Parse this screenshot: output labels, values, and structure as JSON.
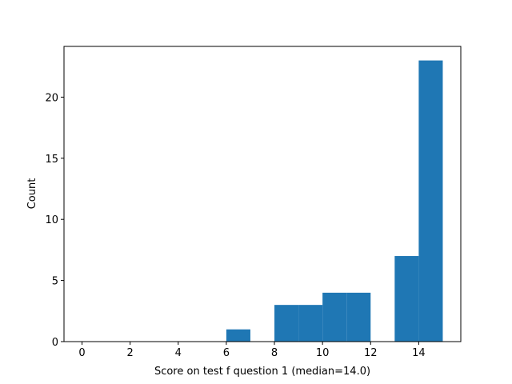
{
  "chart_data": {
    "type": "histogram",
    "xlabel": "Score on test f question 1 (median=14.0)",
    "ylabel": "Count",
    "bins": [
      0,
      1,
      2,
      3,
      4,
      5,
      6,
      7,
      8,
      9,
      10,
      11,
      12,
      13,
      14,
      15
    ],
    "counts": [
      0,
      0,
      0,
      0,
      0,
      0,
      1,
      0,
      3,
      3,
      4,
      4,
      0,
      7,
      23
    ],
    "color": "#1f77b4",
    "xlim": [
      -0.75,
      15.75
    ],
    "xticks": [
      0,
      2,
      4,
      6,
      8,
      10,
      12,
      14
    ],
    "ylim": [
      0,
      24.15
    ],
    "yticks": [
      0,
      5,
      10,
      15,
      20
    ]
  }
}
